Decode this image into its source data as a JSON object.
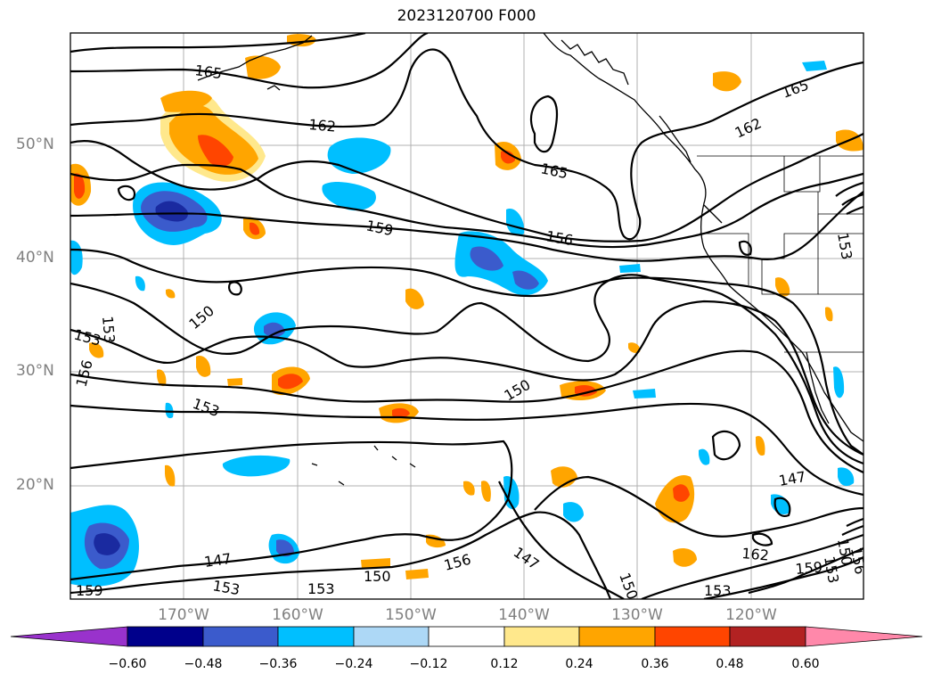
{
  "title": "2023120700 F000",
  "lat_labels": [
    "50°N",
    "40°N",
    "30°N",
    "20°N"
  ],
  "lon_labels": [
    "170°W",
    "160°W",
    "150°W",
    "140°W",
    "130°W",
    "120°W"
  ],
  "contour_labels": [
    "165",
    "162",
    "165",
    "159",
    "156",
    "153",
    "150",
    "153",
    "156",
    "153",
    "150",
    "147",
    "153",
    "153",
    "150",
    "156",
    "147",
    "150",
    "153",
    "162",
    "159",
    "165",
    "162",
    "153",
    "147",
    "150",
    "153",
    "156",
    "159",
    "162"
  ],
  "colorbar": {
    "ticks": [
      "−0.60",
      "−0.48",
      "−0.36",
      "−0.24",
      "−0.12",
      "0.12",
      "0.24",
      "0.36",
      "0.48",
      "0.60"
    ],
    "colors": [
      "#9932cc",
      "#00008b",
      "#3b5bcc",
      "#00bfff",
      "#add8f6",
      "#ffffff",
      "#ffe88c",
      "#ffa500",
      "#ff4500",
      "#b22222",
      "#ff88aa"
    ]
  }
}
